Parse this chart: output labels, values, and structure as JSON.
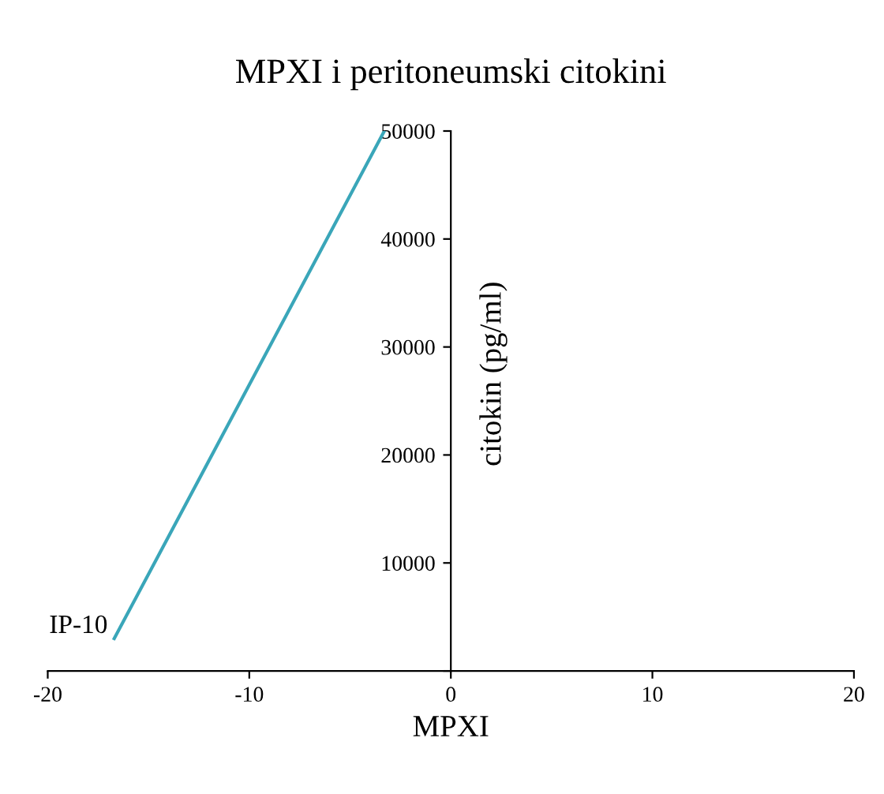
{
  "chart_data": {
    "type": "line",
    "title": "MPXI i peritoneumski citokini",
    "xlabel": "MPXI",
    "ylabel": "citokin (pg/ml)",
    "xlim": [
      -20,
      20
    ],
    "xticks": [
      -20,
      -10,
      0,
      10,
      20
    ],
    "ylim": [
      0,
      50000
    ],
    "yticks": [
      {
        "value": 0,
        "label": null
      },
      10000,
      20000,
      30000,
      40000,
      50000
    ],
    "series": [
      {
        "color": "#3aa6b9",
        "x": [
          -16.7,
          -3.3
        ],
        "values": [
          3000,
          50000
        ]
      }
    ],
    "annotations": [
      {
        "text": "IP-10",
        "x": -16.7,
        "y": 3000
      }
    ],
    "grid": false,
    "marker": "none",
    "line_style": "solid"
  }
}
